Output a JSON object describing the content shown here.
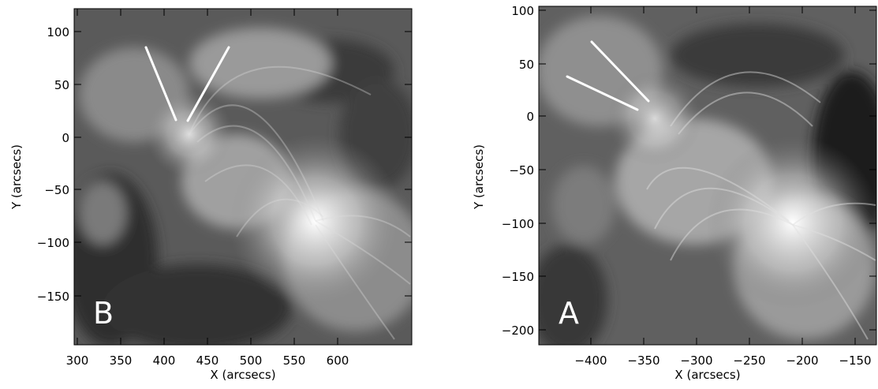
{
  "panels": [
    {
      "letter": "B",
      "xlabel": "X (arcsecs)",
      "ylabel": "Y (arcsecs)",
      "x_ticks": [
        "300",
        "350",
        "400",
        "450",
        "500",
        "550",
        "600"
      ],
      "y_ticks": [
        "100",
        "50",
        "0",
        "−50",
        "−100",
        "−150"
      ]
    },
    {
      "letter": "A",
      "xlabel": "X (arcsecs)",
      "ylabel": "Y (arcsecs)",
      "x_ticks": [
        "−400",
        "−350",
        "−300",
        "−250",
        "−200",
        "−150"
      ],
      "y_ticks": [
        "100",
        "50",
        "0",
        "−50",
        "−100",
        "−150",
        "−200"
      ]
    }
  ]
}
